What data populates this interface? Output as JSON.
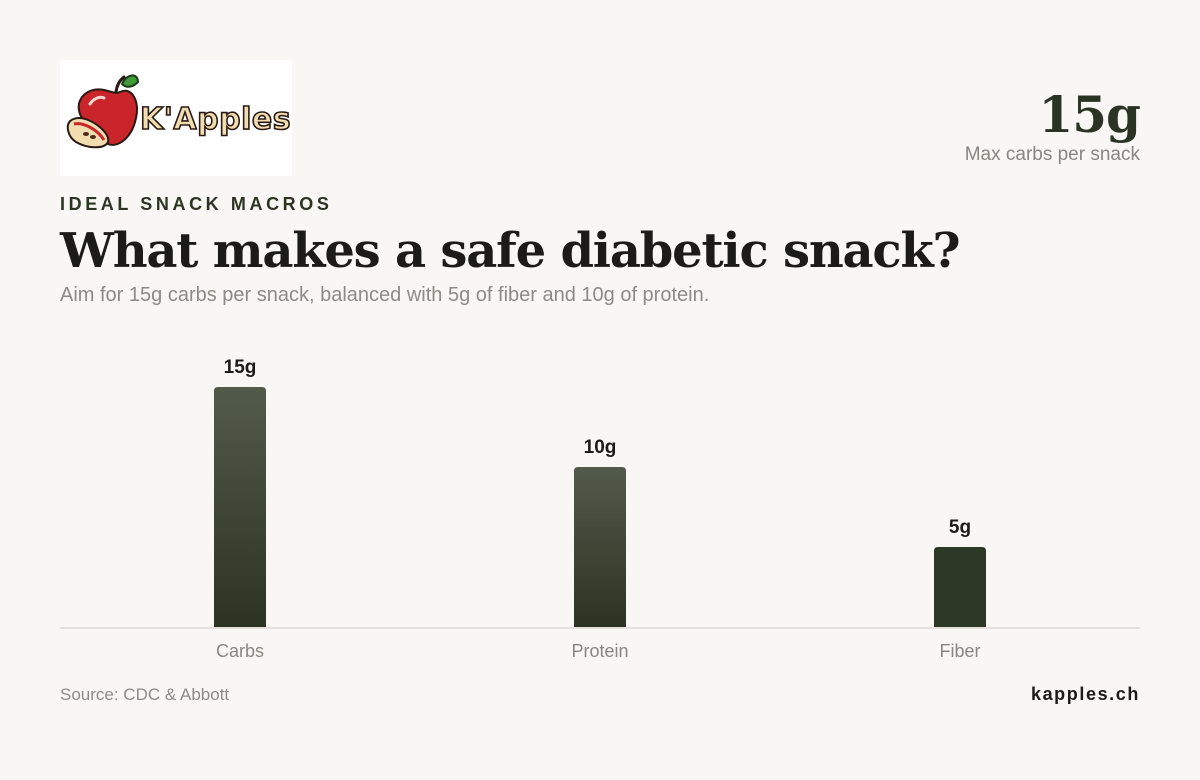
{
  "brand": {
    "logo_text": "K'Apples"
  },
  "kpi": {
    "value": "15g",
    "label": "Max carbs per snack"
  },
  "header": {
    "eyebrow": "IDEAL SNACK MACROS",
    "title": "What makes a safe diabetic snack?",
    "subtitle": "Aim for 15g carbs per snack, balanced with 5g of fiber and 10g of protein."
  },
  "chart_data": {
    "type": "bar",
    "categories": [
      "Carbs",
      "Protein",
      "Fiber"
    ],
    "values": [
      15,
      10,
      5
    ],
    "value_labels": [
      "15g",
      "10g",
      "5g"
    ],
    "unit": "g",
    "ylim": [
      0,
      15
    ],
    "grid": false,
    "legend": "none",
    "colors": {
      "bar_top": "#525a4b",
      "bar_bottom": "#2d3323",
      "fiber": "#2e3826",
      "baseline": "#dddad4",
      "label": "#1b1b18",
      "tick": "#8a8680"
    }
  },
  "footer": {
    "source": "Source: CDC & Abbott",
    "site": "kapples.ch"
  }
}
